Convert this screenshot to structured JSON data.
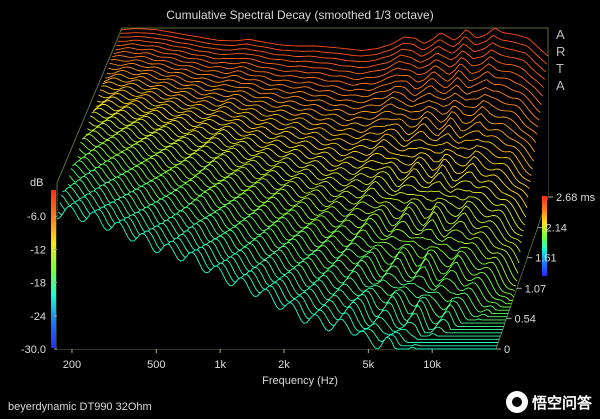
{
  "chart_data": {
    "type": "waterfall",
    "title": "Cumulative Spectral Decay (smoothed 1/3 octave)",
    "xlabel": "Frequency (Hz)",
    "x_scale": "log",
    "xlim": [
      170,
      20000
    ],
    "x_ticks": [
      "200",
      "500",
      "1k",
      "2k",
      "5k",
      "10k"
    ],
    "x_tick_values": [
      200,
      500,
      1000,
      2000,
      5000,
      10000
    ],
    "ylabel": "dB",
    "ylim": [
      -30,
      0
    ],
    "y_ticks": [
      "-6.0",
      "-12",
      "-18",
      "-24",
      "-30.0"
    ],
    "y_tick_values": [
      -6,
      -12,
      -18,
      -24,
      -30
    ],
    "zlabel": "ms",
    "zlim": [
      0,
      2.68
    ],
    "z_ticks": [
      "0",
      "0.54",
      "1.07",
      "1.61",
      "2.14",
      "2.68 ms"
    ],
    "z_tick_values": [
      0,
      0.54,
      1.07,
      1.61,
      2.14,
      2.68
    ],
    "initial_response": {
      "frequency_hz": [
        170,
        200,
        250,
        300,
        400,
        500,
        600,
        700,
        800,
        1000,
        1200,
        1500,
        2000,
        2500,
        3000,
        3500,
        4000,
        4500,
        5000,
        5500,
        6000,
        7000,
        7500,
        8000,
        9000,
        10000,
        11000,
        12000,
        14000,
        16000,
        18000,
        20000
      ],
      "level_db": [
        -0.3,
        -0.1,
        -0.3,
        -0.8,
        -1.6,
        -2.2,
        -2.3,
        -2.0,
        -2.4,
        -3.0,
        -3.2,
        -3.2,
        -3.6,
        -4.0,
        -3.6,
        -2.8,
        -1.6,
        -1.8,
        -2.8,
        -2.0,
        -0.8,
        -2.2,
        -1.4,
        -0.2,
        -1.8,
        -1.2,
        0.0,
        -0.8,
        -1.2,
        -1.8,
        -3.5,
        -5.0
      ]
    },
    "colormap": [
      "#ff2a1a",
      "#ff7a1a",
      "#ffe21a",
      "#7aff3a",
      "#1affd2",
      "#1a7aff",
      "#2a2aff"
    ],
    "grid": false,
    "legend": "colorbar-left"
  },
  "footer": "beyerdynamic DT990 32Ohm",
  "brand": [
    "A",
    "R",
    "T",
    "A"
  ],
  "watermark": "悟空问答"
}
